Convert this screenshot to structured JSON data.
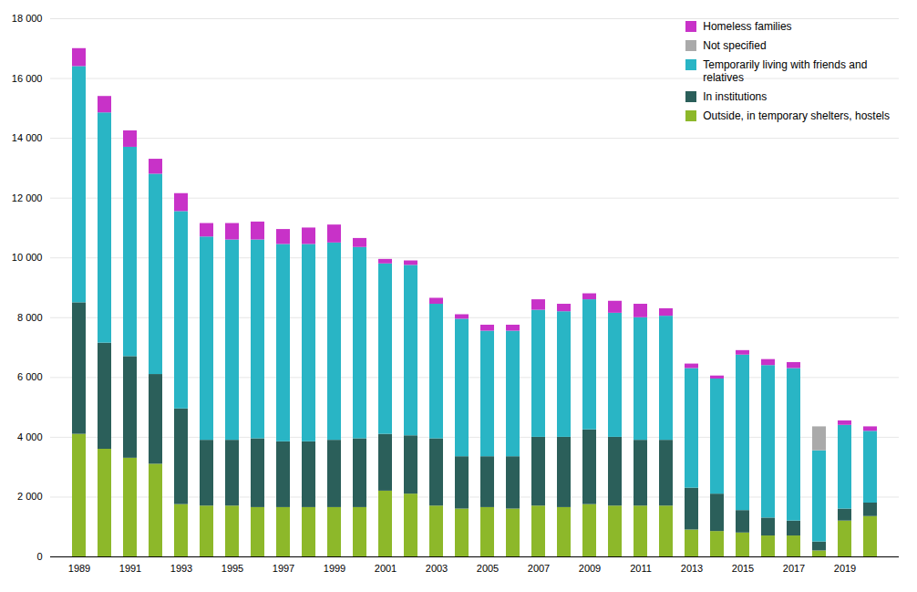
{
  "chart_data": {
    "type": "bar",
    "stacked": true,
    "grid": true,
    "legend": "upper right",
    "categories": [
      "1989",
      null,
      "1991",
      null,
      "1993",
      null,
      "1995",
      null,
      "1997",
      null,
      "1999",
      null,
      "2001",
      null,
      "2003",
      null,
      "2005",
      null,
      "2007",
      null,
      "2009",
      null,
      "2011",
      null,
      "2013",
      null,
      "2015",
      null,
      "2017",
      null,
      "2019",
      null
    ],
    "series": [
      {
        "name": "Outside, in temporary shelters, hostels",
        "color": "#8db82a",
        "values": [
          4100,
          3600,
          3300,
          3100,
          1750,
          1700,
          1700,
          1650,
          1650,
          1650,
          1650,
          1650,
          2200,
          2100,
          1700,
          1600,
          1650,
          1600,
          1700,
          1650,
          1750,
          1700,
          1700,
          1700,
          900,
          850,
          800,
          700,
          700,
          200,
          1200,
          1350
        ]
      },
      {
        "name": "In institutions",
        "color": "#2b5f5a",
        "values": [
          4400,
          3550,
          3400,
          3000,
          3200,
          2200,
          2200,
          2300,
          2200,
          2200,
          2250,
          2300,
          1900,
          1950,
          2250,
          1750,
          1700,
          1750,
          2300,
          2350,
          2500,
          2300,
          2200,
          2200,
          1400,
          1250,
          750,
          600,
          500,
          300,
          400,
          450
        ]
      },
      {
        "name": "Temporarily living with friends and\nrelatives",
        "color": "#29b5c5",
        "values": [
          7900,
          7700,
          7000,
          6700,
          6600,
          6800,
          6700,
          6650,
          6600,
          6600,
          6600,
          6400,
          5700,
          5700,
          4500,
          4600,
          4200,
          4200,
          4250,
          4200,
          4350,
          4150,
          4100,
          4150,
          4000,
          3850,
          5200,
          5100,
          5100,
          3050,
          2800,
          2400
        ]
      },
      {
        "name": "Not specified",
        "color": "#aaaaaa",
        "values": [
          0,
          0,
          0,
          0,
          0,
          0,
          0,
          0,
          0,
          0,
          0,
          0,
          0,
          0,
          0,
          0,
          0,
          0,
          0,
          0,
          0,
          0,
          0,
          0,
          0,
          0,
          0,
          0,
          0,
          800,
          0,
          0
        ]
      },
      {
        "name": "Homeless families",
        "color": "#c832c8",
        "values": [
          600,
          550,
          550,
          500,
          600,
          450,
          550,
          600,
          500,
          550,
          600,
          300,
          150,
          150,
          200,
          150,
          200,
          200,
          350,
          250,
          200,
          400,
          450,
          250,
          150,
          100,
          150,
          200,
          200,
          0,
          150,
          150
        ]
      }
    ],
    "ylim": [
      0,
      18000
    ],
    "yticks": [
      0,
      {
        "value": 2000,
        "label": "2 000"
      },
      {
        "value": 4000,
        "label": "4 000"
      },
      {
        "value": 6000,
        "label": "6 000"
      },
      {
        "value": 8000,
        "label": "8 000"
      },
      {
        "value": 10000,
        "label": "10 000"
      },
      {
        "value": 12000,
        "label": "12 000"
      },
      {
        "value": 14000,
        "label": "14 000"
      },
      {
        "value": 16000,
        "label": "16 000"
      },
      {
        "value": 18000,
        "label": "18 000"
      }
    ]
  }
}
